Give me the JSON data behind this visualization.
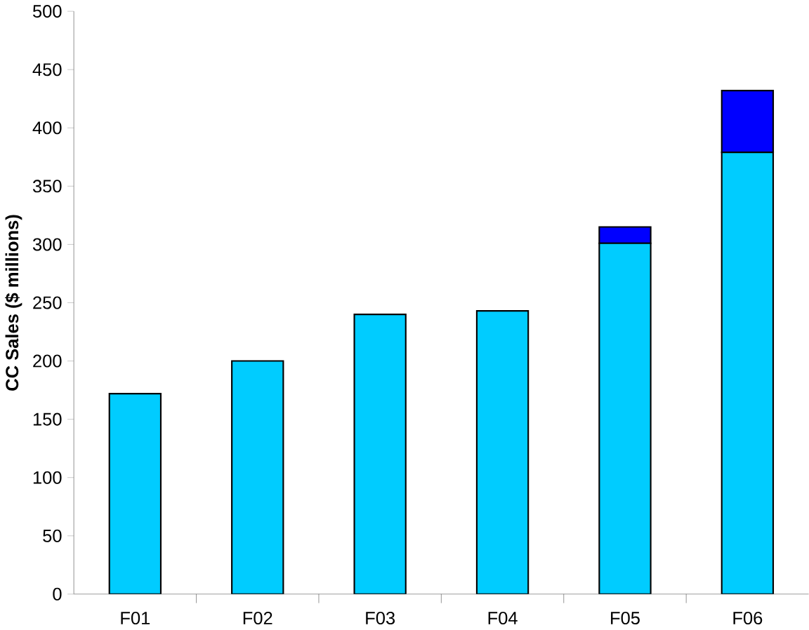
{
  "chart_data": {
    "type": "bar",
    "stacked": true,
    "ylabel": "CC Sales ($ millions)",
    "categories": [
      "F01",
      "F02",
      "F03",
      "F04",
      "F05",
      "F06"
    ],
    "series": [
      {
        "color": "#00ccff",
        "values": [
          172,
          200,
          240,
          243,
          301,
          379
        ]
      },
      {
        "color": "#0000ff",
        "values": [
          0,
          0,
          0,
          0,
          14,
          53
        ]
      }
    ],
    "ylim": [
      0,
      500
    ],
    "yticks": [
      0,
      50,
      100,
      150,
      200,
      250,
      300,
      350,
      400,
      450,
      500
    ],
    "grid": false
  }
}
